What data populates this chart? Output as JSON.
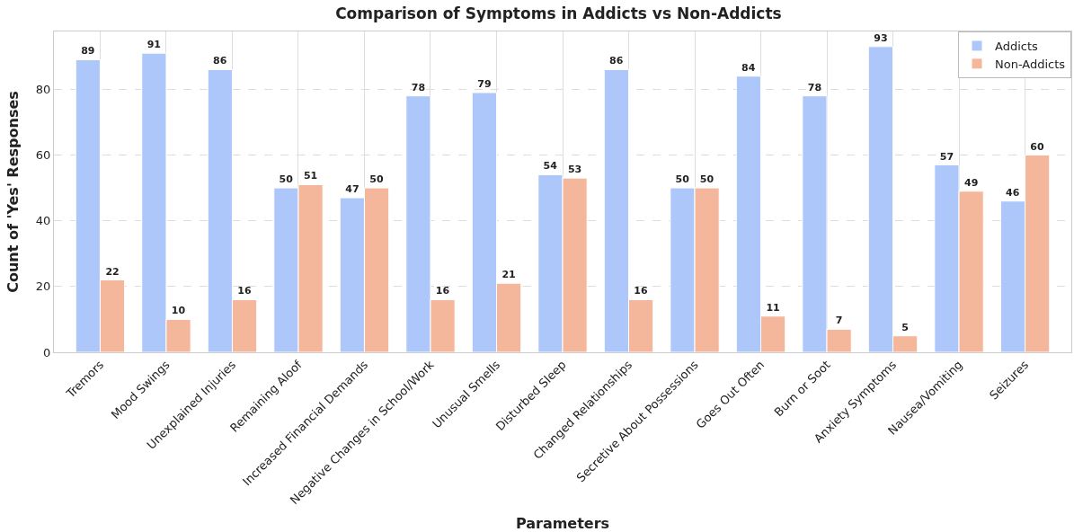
{
  "chart_data": {
    "type": "bar",
    "title": "Comparison of Symptoms in Addicts vs Non-Addicts",
    "xlabel": "Parameters",
    "ylabel": "Count of 'Yes' Responses",
    "categories": [
      "Tremors",
      "Mood Swings",
      "Unexplained Injuries",
      "Remaining Aloof",
      "Increased Financial Demands",
      "Negative Changes in School/Work",
      "Unusual Smells",
      "Disturbed Sleep",
      "Changed Relationships",
      "Secretive About Possessions",
      "Goes Out Often",
      "Burn or Soot",
      "Anxiety Symptoms",
      "Nausea/Vomiting",
      "Seizures"
    ],
    "series": [
      {
        "name": "Addicts",
        "color": "#aec7fa",
        "values": [
          89,
          91,
          86,
          50,
          47,
          78,
          79,
          54,
          86,
          50,
          84,
          78,
          93,
          57,
          46
        ]
      },
      {
        "name": "Non-Addicts",
        "color": "#f5b79b",
        "values": [
          22,
          10,
          16,
          51,
          50,
          16,
          21,
          53,
          16,
          50,
          11,
          7,
          5,
          49,
          60
        ]
      }
    ],
    "data_labels": true,
    "ylim": [
      0,
      97.6
    ],
    "yticks": [
      0,
      20,
      40,
      60,
      80
    ],
    "grid": true,
    "legend": "top right"
  }
}
